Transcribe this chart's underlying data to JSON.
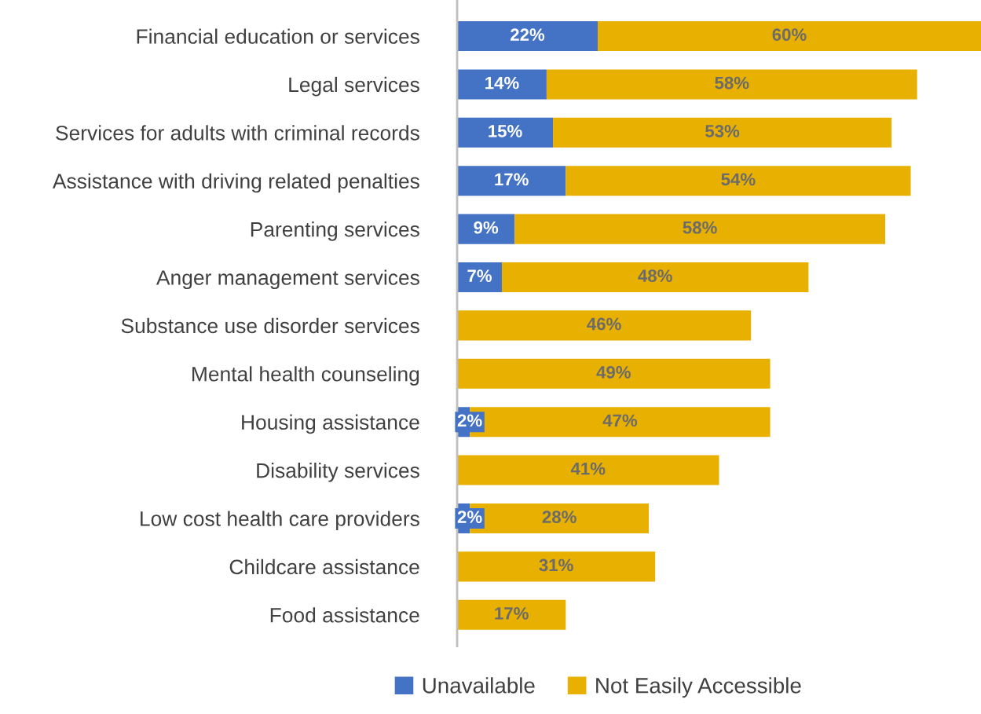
{
  "chart_data": {
    "type": "bar",
    "orientation": "horizontal",
    "stacked": true,
    "legend": "bottom",
    "grid": false,
    "tick_labels": "y",
    "categories": [
      "Financial education or services",
      "Legal services",
      "Services for adults with criminal records",
      "Assistance with driving related penalties",
      "Parenting services",
      "Anger management services",
      "Substance use disorder services",
      "Mental health counseling",
      "Housing assistance",
      "Disability services",
      "Low cost health care providers",
      "Childcare assistance",
      "Food assistance"
    ],
    "series": [
      {
        "name": "Unavailable",
        "color": "#4472c4",
        "values": [
          22,
          14,
          15,
          17,
          9,
          7,
          null,
          null,
          2,
          null,
          2,
          null,
          null
        ],
        "value_labels": [
          "22%",
          "14%",
          "15%",
          "17%",
          "9%",
          "7%",
          null,
          null,
          "2%",
          null,
          "2%",
          null,
          null
        ]
      },
      {
        "name": "Not Easily Accessible",
        "color": "#e8b000",
        "values": [
          60,
          58,
          53,
          54,
          58,
          48,
          46,
          49,
          47,
          41,
          28,
          31,
          17
        ],
        "value_labels": [
          "60%",
          "58%",
          "53%",
          "54%",
          "58%",
          "48%",
          "46%",
          "49%",
          "47%",
          "41%",
          "28%",
          "31%",
          "17%"
        ]
      }
    ]
  }
}
